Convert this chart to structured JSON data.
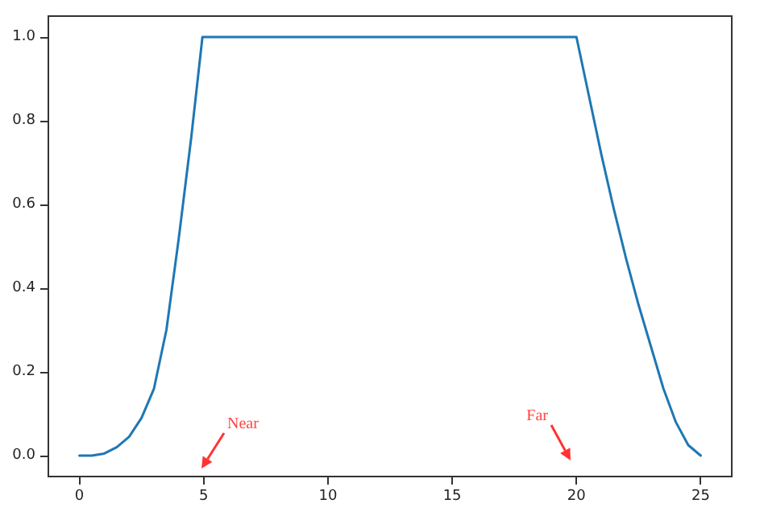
{
  "chart_data": {
    "type": "line",
    "x": [
      0,
      0.5,
      1,
      1.5,
      2,
      2.5,
      3,
      3.5,
      4,
      4.5,
      4.95,
      20,
      20.5,
      21,
      21.5,
      22,
      22.5,
      23,
      23.5,
      24,
      24.5,
      25
    ],
    "series": [
      {
        "color": "#1f77b4",
        "values": [
          0,
          0,
          0.005,
          0.02,
          0.045,
          0.09,
          0.16,
          0.3,
          0.52,
          0.76,
          1,
          1,
          0.86,
          0.72,
          0.59,
          0.47,
          0.36,
          0.26,
          0.16,
          0.08,
          0.025,
          0
        ]
      }
    ],
    "xlim": [
      -1.25,
      26.25
    ],
    "xticks": [
      0,
      5,
      10,
      15,
      20,
      25
    ],
    "ylim": [
      -0.05,
      1.05
    ],
    "yticks": [
      {
        "value": 0,
        "label": "0.0"
      },
      0.2,
      0.4,
      0.6,
      0.8,
      {
        "value": 1,
        "label": "1.0"
      }
    ],
    "grid": false,
    "marker": "none",
    "line_style": "solid",
    "annotations": [
      "Near",
      "Far"
    ]
  }
}
